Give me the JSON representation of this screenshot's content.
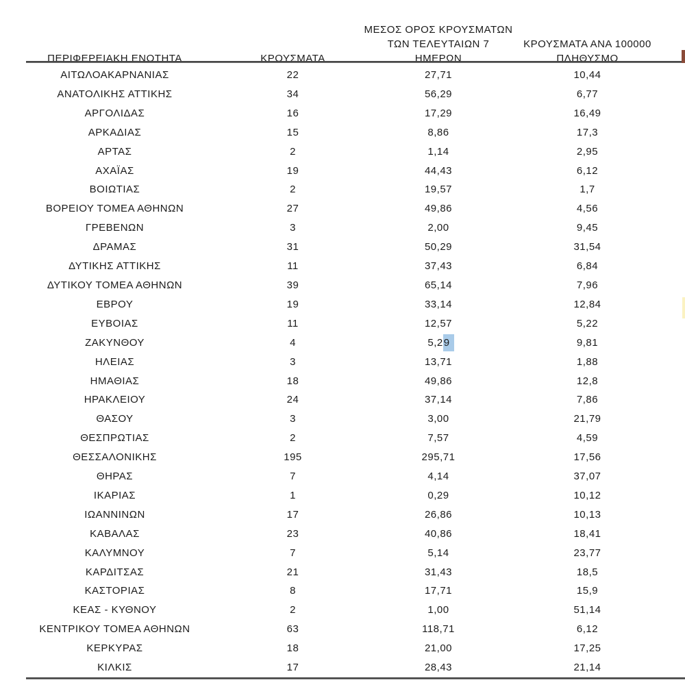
{
  "table": {
    "header": {
      "col1": "ΠΕΡΙΦΕΡΕΙΑΚΗ ΕΝΟΤΗΤΑ",
      "col2": "ΚΡΟΥΣΜΑΤΑ",
      "col3_line1": "ΜΕΣΟΣ ΟΡΟΣ ΚΡΟΥΣΜΑΤΩΝ",
      "col3_line2": "ΤΩΝ ΤΕΛΕΥΤΑΙΩΝ 7",
      "col3_line3": "ΗΜΕΡΩΝ",
      "col4_line1": "ΚΡΟΥΣΜΑΤΑ ΑΝΑ 100000",
      "col4_line2": "ΠΛΗΘΥΣΜΟ"
    },
    "rows": [
      {
        "region": "ΑΙΤΩΛΟΑΚΑΡΝΑΝΙΑΣ",
        "cases": "22",
        "avg7": "27,71",
        "per100k": "10,44"
      },
      {
        "region": "ΑΝΑΤΟΛΙΚΗΣ ΑΤΤΙΚΗΣ",
        "cases": "34",
        "avg7": "56,29",
        "per100k": "6,77"
      },
      {
        "region": "ΑΡΓΟΛΙΔΑΣ",
        "cases": "16",
        "avg7": "17,29",
        "per100k": "16,49"
      },
      {
        "region": "ΑΡΚΑΔΙΑΣ",
        "cases": "15",
        "avg7": "8,86",
        "per100k": "17,3"
      },
      {
        "region": "ΑΡΤΑΣ",
        "cases": "2",
        "avg7": "1,14",
        "per100k": "2,95"
      },
      {
        "region": "ΑΧΑΪΑΣ",
        "cases": "19",
        "avg7": "44,43",
        "per100k": "6,12"
      },
      {
        "region": "ΒΟΙΩΤΙΑΣ",
        "cases": "2",
        "avg7": "19,57",
        "per100k": "1,7"
      },
      {
        "region": "ΒΟΡΕΙΟΥ ΤΟΜΕΑ ΑΘΗΝΩΝ",
        "cases": "27",
        "avg7": "49,86",
        "per100k": "4,56"
      },
      {
        "region": "ΓΡΕΒΕΝΩΝ",
        "cases": "3",
        "avg7": "2,00",
        "per100k": "9,45"
      },
      {
        "region": "ΔΡΑΜΑΣ",
        "cases": "31",
        "avg7": "50,29",
        "per100k": "31,54"
      },
      {
        "region": "ΔΥΤΙΚΗΣ ΑΤΤΙΚΗΣ",
        "cases": "11",
        "avg7": "37,43",
        "per100k": "6,84"
      },
      {
        "region": "ΔΥΤΙΚΟΥ ΤΟΜΕΑ ΑΘΗΝΩΝ",
        "cases": "39",
        "avg7": "65,14",
        "per100k": "7,96"
      },
      {
        "region": "ΕΒΡΟΥ",
        "cases": "19",
        "avg7": "33,14",
        "per100k": "12,84"
      },
      {
        "region": "ΕΥΒΟΙΑΣ",
        "cases": "11",
        "avg7": "12,57",
        "per100k": "5,22"
      },
      {
        "region": "ΖΑΚΥΝΘΟΥ",
        "cases": "4",
        "avg7": "5,29",
        "per100k": "9,81"
      },
      {
        "region": "ΗΛΕΙΑΣ",
        "cases": "3",
        "avg7": "13,71",
        "per100k": "1,88"
      },
      {
        "region": "ΗΜΑΘΙΑΣ",
        "cases": "18",
        "avg7": "49,86",
        "per100k": "12,8"
      },
      {
        "region": "ΗΡΑΚΛΕΙΟΥ",
        "cases": "24",
        "avg7": "37,14",
        "per100k": "7,86"
      },
      {
        "region": "ΘΑΣΟΥ",
        "cases": "3",
        "avg7": "3,00",
        "per100k": "21,79"
      },
      {
        "region": "ΘΕΣΠΡΩΤΙΑΣ",
        "cases": "2",
        "avg7": "7,57",
        "per100k": "4,59"
      },
      {
        "region": "ΘΕΣΣΑΛΟΝΙΚΗΣ",
        "cases": "195",
        "avg7": "295,71",
        "per100k": "17,56"
      },
      {
        "region": "ΘΗΡΑΣ",
        "cases": "7",
        "avg7": "4,14",
        "per100k": "37,07"
      },
      {
        "region": "ΙΚΑΡΙΑΣ",
        "cases": "1",
        "avg7": "0,29",
        "per100k": "10,12"
      },
      {
        "region": "ΙΩΑΝΝΙΝΩΝ",
        "cases": "17",
        "avg7": "26,86",
        "per100k": "10,13"
      },
      {
        "region": "ΚΑΒΑΛΑΣ",
        "cases": "23",
        "avg7": "40,86",
        "per100k": "18,41"
      },
      {
        "region": "ΚΑΛΥΜΝΟΥ",
        "cases": "7",
        "avg7": "5,14",
        "per100k": "23,77"
      },
      {
        "region": "ΚΑΡΔΙΤΣΑΣ",
        "cases": "21",
        "avg7": "31,43",
        "per100k": "18,5"
      },
      {
        "region": "ΚΑΣΤΟΡΙΑΣ",
        "cases": "8",
        "avg7": "17,71",
        "per100k": "15,9"
      },
      {
        "region": "ΚΕΑΣ - ΚΥΘΝΟΥ",
        "cases": "2",
        "avg7": "1,00",
        "per100k": "51,14"
      },
      {
        "region": "ΚΕΝΤΡΙΚΟΥ ΤΟΜΕΑ ΑΘΗΝΩΝ",
        "cases": "63",
        "avg7": "118,71",
        "per100k": "6,12"
      },
      {
        "region": "ΚΕΡΚΥΡΑΣ",
        "cases": "18",
        "avg7": "21,00",
        "per100k": "17,25"
      },
      {
        "region": "ΚΙΛΚΙΣ",
        "cases": "17",
        "avg7": "28,43",
        "per100k": "21,14"
      }
    ]
  },
  "selection": {
    "row_index": 14,
    "column": "avg7",
    "value_prefix": "5,2",
    "value_selected": "9",
    "highlight_color": "#a9cbe9"
  },
  "colors": {
    "text": "#1b1b1b",
    "rule": "#474747",
    "yellow_sliver": "#fbf2c2",
    "cut_glyph": "#8a4a38"
  }
}
